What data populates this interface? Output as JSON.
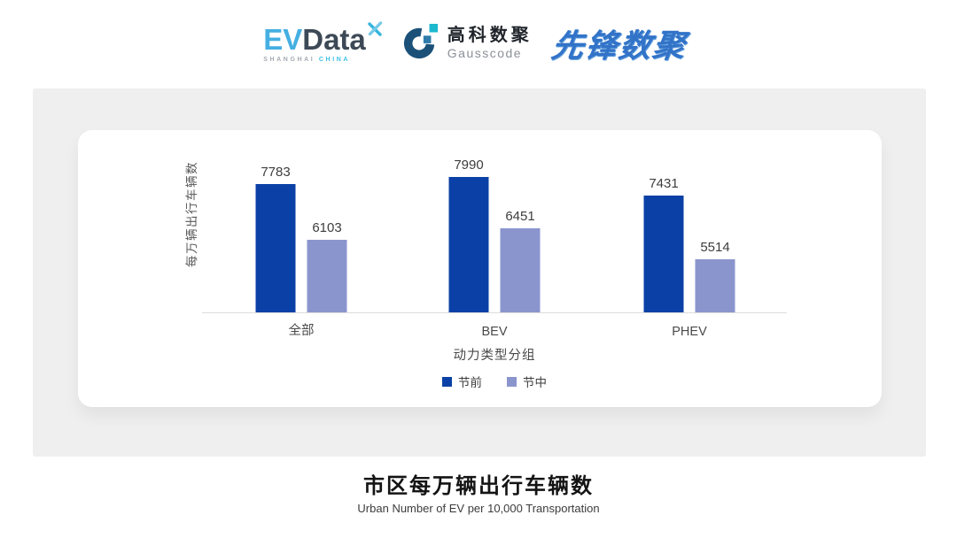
{
  "header": {
    "evdata_logo": {
      "ev": "EV",
      "data": "Data",
      "sub_left": "SHANGHAI",
      "sub_right": "CHINA"
    },
    "gausscode_logo": {
      "name_cn": "高科数聚",
      "name_en": "Gausscode"
    },
    "pioneer_logo": {
      "text": "先锋数聚"
    }
  },
  "chart_data": {
    "type": "bar",
    "title": "市区每万辆出行车辆数",
    "categories": [
      "全部",
      "BEV",
      "PHEV"
    ],
    "series": [
      {
        "name": "节前",
        "color": "#0b41a6",
        "values": [
          7783,
          7990,
          7431
        ]
      },
      {
        "name": "节中",
        "color": "#8b95cd",
        "values": [
          6103,
          6451,
          5514
        ]
      }
    ],
    "xlabel": "动力类型分组",
    "ylabel": "每万辆出行车辆数",
    "ylim": [
      3900,
      9100
    ],
    "grid": false,
    "legend_position": "bottom",
    "value_labels": true
  },
  "footer": {
    "title": "市区每万辆出行车辆数",
    "subtitle": "Urban Number of EV per 10,000 Transportation"
  },
  "colors": {
    "bar_pre_festival": "#0b41a6",
    "bar_mid_festival": "#8b95cd",
    "panel_background": "#efefef",
    "evdata_blue": "#45afe2",
    "evdata_dark": "#3d4956",
    "gausscode_teal": "#1cb8cd",
    "gausscode_navy": "#1b5178",
    "pioneer_blue": "#3273c8"
  }
}
